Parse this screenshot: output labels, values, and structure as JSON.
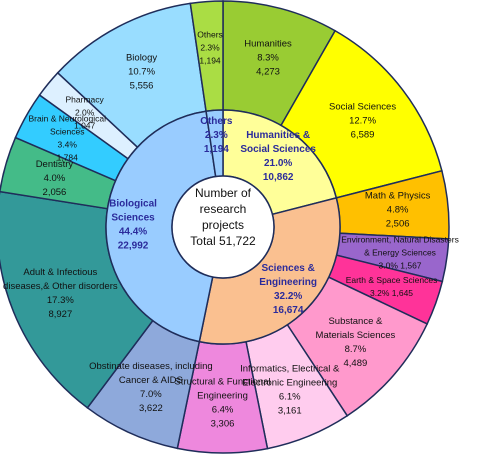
{
  "chart_data": {
    "type": "pie",
    "subtype": "two-level donut",
    "center_text": [
      "Number of",
      "research",
      "projects",
      "Total 51,722"
    ],
    "inner": [
      {
        "name": "Humanities & Social Sciences",
        "label_lines": [
          "Humanities &",
          "Social Sciences"
        ],
        "percent": "21.0%",
        "count": "10,862",
        "value": 10862,
        "color": "#ffff99",
        "text_color": "#2b2b9b"
      },
      {
        "name": "Sciences & Engineering",
        "label_lines": [
          "Sciences &",
          "Engineering"
        ],
        "percent": "32.2%",
        "count": "16,674",
        "value": 16674,
        "color": "#fac090",
        "text_color": "#2b2b9b"
      },
      {
        "name": "Biological Sciences",
        "label_lines": [
          "Biological",
          "Sciences"
        ],
        "percent": "44.4%",
        "count": "22,992",
        "value": 22992,
        "color": "#99ccff",
        "text_color": "#2b2b9b"
      },
      {
        "name": "Others",
        "label_lines": [
          "Others"
        ],
        "percent": "2.3%",
        "count": "1,194",
        "value": 1194,
        "color": "#99ccff",
        "text_color": "#2b2b9b"
      }
    ],
    "outer": [
      {
        "name": "Humanities",
        "label_lines": [
          "Humanities"
        ],
        "percent": "8.3%",
        "count": "4,273",
        "value": 4273,
        "color": "#99cc33"
      },
      {
        "name": "Social Sciences",
        "label_lines": [
          "Social Sciences"
        ],
        "percent": "12.7%",
        "count": "6,589",
        "value": 6589,
        "color": "#ffff00"
      },
      {
        "name": "Math & Physics",
        "label_lines": [
          "Math & Physics"
        ],
        "percent": "4.8%",
        "count": "2,506",
        "value": 2506,
        "color": "#ffc000"
      },
      {
        "name": "Environment, Natural Disasters & Energy Sciences",
        "label_lines": [
          "Environment, Natural Disasters",
          "& Energy Sciences",
          "3.0% 1,567"
        ],
        "percent": "3.0%",
        "count": "1,567",
        "value": 1567,
        "color": "#9966cc"
      },
      {
        "name": "Earth & Space Sciences",
        "label_lines": [
          "Earth & Space Sciences",
          "3.2% 1,645"
        ],
        "percent": "3.2%",
        "count": "1,645",
        "value": 1645,
        "color": "#ff3399"
      },
      {
        "name": "Substance & Materials Sciences",
        "label_lines": [
          "Substance &",
          "Materials Sciences"
        ],
        "percent": "8.7%",
        "count": "4,489",
        "value": 4489,
        "color": "#ff99cc"
      },
      {
        "name": "Informatics, Electrical & Electronic Engineering",
        "label_lines": [
          "Informatics, Electrical &",
          "Electronic Engineering"
        ],
        "percent": "6.1%",
        "count": "3,161",
        "value": 3161,
        "color": "#ffccee"
      },
      {
        "name": "Structural & Functional Engineering",
        "label_lines": [
          "Structural & Functional",
          "Engineering"
        ],
        "percent": "6.4%",
        "count": "3,306",
        "value": 3306,
        "color": "#ee88dd"
      },
      {
        "name": "Obstinate diseases, including Cancer & AIDS",
        "label_lines": [
          "Obstinate diseases, including",
          "Cancer & AIDS"
        ],
        "percent": "7.0%",
        "count": "3,622",
        "value": 3622,
        "color": "#8ea9db"
      },
      {
        "name": "Adult & Infectious diseases, & Other disorders",
        "label_lines": [
          "Adult & Infectious",
          "diseases,& Other disorders"
        ],
        "percent": "17.3%",
        "count": "8,927",
        "value": 8927,
        "color": "#339999"
      },
      {
        "name": "Dentistry",
        "label_lines": [
          "Dentistry"
        ],
        "percent": "4.0%",
        "count": "2,056",
        "value": 2056,
        "color": "#44bb88"
      },
      {
        "name": "Brain & Neurological Sciences",
        "label_lines": [
          "Brain & Neurological",
          "Sciences"
        ],
        "percent": "3.4%",
        "count": "1,784",
        "value": 1784,
        "color": "#33ccff"
      },
      {
        "name": "Pharmacy",
        "label_lines": [
          "Pharmacy"
        ],
        "percent": "2.0%",
        "count": "1,047",
        "value": 1047,
        "color": "#ddf0ff"
      },
      {
        "name": "Biology",
        "label_lines": [
          "Biology"
        ],
        "percent": "10.7%",
        "count": "5,556",
        "value": 5556,
        "color": "#99ddff"
      },
      {
        "name": "Others",
        "label_lines": [
          "Others"
        ],
        "percent": "2.3%",
        "count": "1,194",
        "value": 1194,
        "color": "#aadd44"
      }
    ]
  }
}
